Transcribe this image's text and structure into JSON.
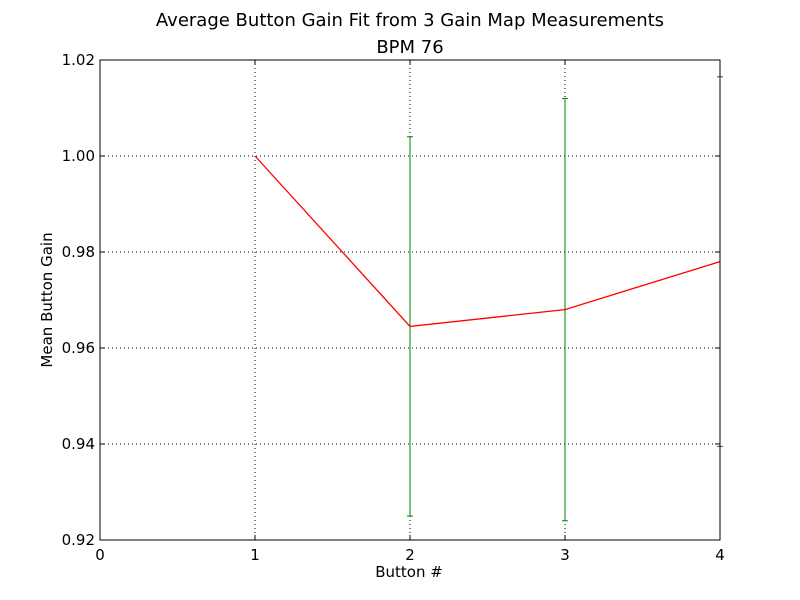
{
  "chart_data": {
    "type": "line",
    "title": "Average Button Gain Fit from 3 Gain Map Measurements",
    "subtitle": "BPM 76",
    "xlabel": "Button #",
    "ylabel": "Mean Button Gain",
    "xlim": [
      0,
      4
    ],
    "ylim": [
      0.92,
      1.02
    ],
    "x_ticks": [
      0,
      1,
      2,
      3,
      4
    ],
    "x_tick_labels": [
      "0",
      "1",
      "2",
      "3",
      "4"
    ],
    "y_ticks": [
      0.92,
      0.94,
      0.96,
      0.98,
      1.0,
      1.02
    ],
    "y_tick_labels": [
      "0.92",
      "0.94",
      "0.96",
      "0.98",
      "1.00",
      "1.02"
    ],
    "grid": true,
    "series": [
      {
        "x": [
          1,
          2,
          3,
          4
        ],
        "y": [
          1.0,
          0.9645,
          0.968,
          0.978
        ],
        "yerr": [
          0,
          0.0395,
          0.044,
          0.0385
        ],
        "line_color": "#ff0000",
        "errorbar_color": "#008000"
      }
    ]
  }
}
